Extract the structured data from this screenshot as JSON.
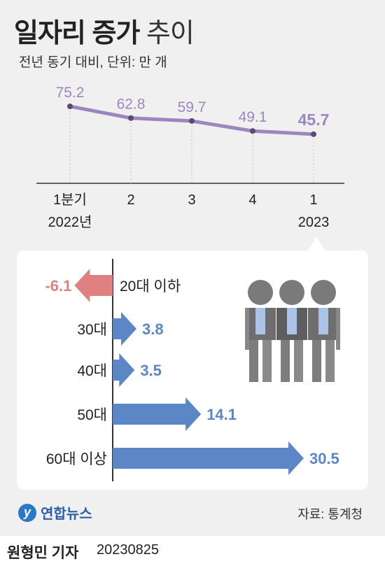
{
  "title_bold": "일자리 증가",
  "title_light": "추이",
  "subtitle": "전년 동기 대비, 단위: 만 개",
  "chart_data": [
    {
      "type": "line",
      "categories": [
        "1분기\n2022년",
        "2",
        "3",
        "4",
        "1\n2023"
      ],
      "values": [
        75.2,
        62.8,
        59.7,
        49.1,
        45.7
      ],
      "value_labels": [
        "75.2",
        "62.8",
        "59.7",
        "49.1",
        "45.7"
      ],
      "highlight_index": 4,
      "ylabel": "",
      "color": "#9b87be"
    },
    {
      "type": "bar",
      "orientation": "horizontal",
      "categories": [
        "20대 이하",
        "30대",
        "40대",
        "50대",
        "60대 이상"
      ],
      "values": [
        -6.1,
        3.8,
        3.5,
        14.1,
        30.5
      ],
      "value_labels": [
        "-6.1",
        "3.8",
        "3.5",
        "14.1",
        "30.5"
      ],
      "positive_color": "#5b87c7",
      "negative_color": "#e08080"
    }
  ],
  "source": "자료: 통계청",
  "logo_text": "연합뉴스",
  "logo_mark": "y",
  "byline_name": "원형민 기자",
  "byline_date": "20230825",
  "colors": {
    "line": "#9b87be",
    "positive": "#5b87c7",
    "negative": "#e08080"
  }
}
